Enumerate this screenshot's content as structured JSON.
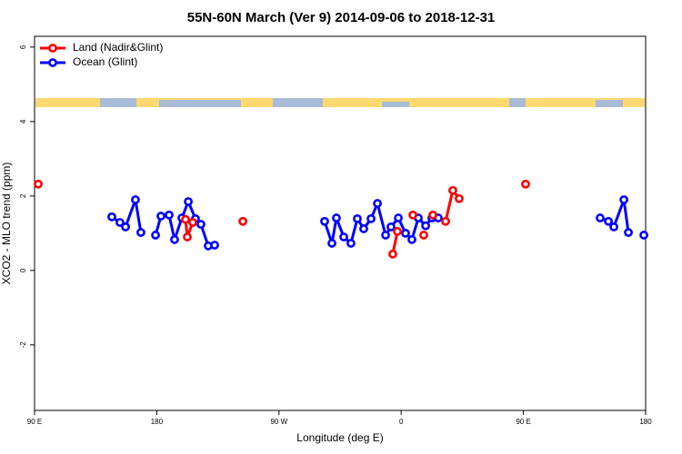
{
  "chart_data": {
    "type": "line",
    "title": "55N-60N March (Ver 9)   2014-09-06 to 2018-12-31",
    "x_label": "Longitude (deg E)",
    "y_label": "XCO2 - MLO trend (ppm)",
    "xlim": [
      90,
      540
    ],
    "xticks": [
      {
        "value": 90,
        "label": "90 E"
      },
      180,
      {
        "value": 270,
        "label": "90 W"
      },
      {
        "value": 360,
        "label": "0"
      },
      {
        "value": 450,
        "label": "90 E"
      },
      {
        "value": 540,
        "label": "180"
      }
    ],
    "ylim": [
      -3.76,
      6.29
    ],
    "yticks": [
      -2,
      0,
      2,
      4,
      6
    ],
    "legend": "top-left",
    "series": [
      {
        "name": "Land (Nadir&Glint)",
        "color": "#ff0000",
        "x": [
          92.7,
          150,
          201.2,
          202.5,
          206.5,
          225,
          243.4,
          300,
          353.8,
          357.2,
          363,
          368.6,
          372,
          376.6,
          380,
          383.3,
          388,
          392.7,
          398,
          402.7,
          425,
          451.6
        ],
        "values": [
          2.32,
          null,
          1.37,
          0.9,
          1.29,
          null,
          1.32,
          null,
          0.44,
          1.05,
          null,
          1.49,
          null,
          0.95,
          null,
          1.49,
          null,
          1.32,
          2.15,
          1.93,
          null,
          2.32
        ]
      },
      {
        "name": "Ocean (Glint)",
        "color": "#0000ff",
        "x": [
          146.9,
          152.9,
          157,
          164.3,
          168.3,
          173.7,
          179.1,
          183.1,
          189.1,
          193.1,
          198.5,
          203.2,
          208.5,
          212.5,
          217.9,
          222.6,
          263,
          303.6,
          309,
          312.3,
          317.7,
          323,
          327.7,
          332.4,
          337.8,
          342.5,
          348.5,
          352.5,
          357.9,
          363.2,
          367.9,
          372.6,
          378,
          382.6,
          387.3,
          447,
          506.5,
          512.6,
          516.6,
          524,
          527.3,
          533,
          538.7
        ],
        "values": [
          1.44,
          1.29,
          1.17,
          1.9,
          1.02,
          null,
          0.95,
          1.46,
          1.49,
          0.83,
          1.41,
          1.85,
          1.39,
          1.24,
          0.66,
          0.68,
          null,
          1.32,
          0.73,
          1.41,
          0.9,
          0.73,
          1.39,
          1.12,
          1.39,
          1.8,
          0.95,
          1.17,
          1.41,
          1.0,
          0.83,
          1.41,
          1.2,
          1.41,
          1.41,
          null,
          1.41,
          1.32,
          1.17,
          1.9,
          1.02,
          null,
          0.95
        ]
      }
    ]
  }
}
